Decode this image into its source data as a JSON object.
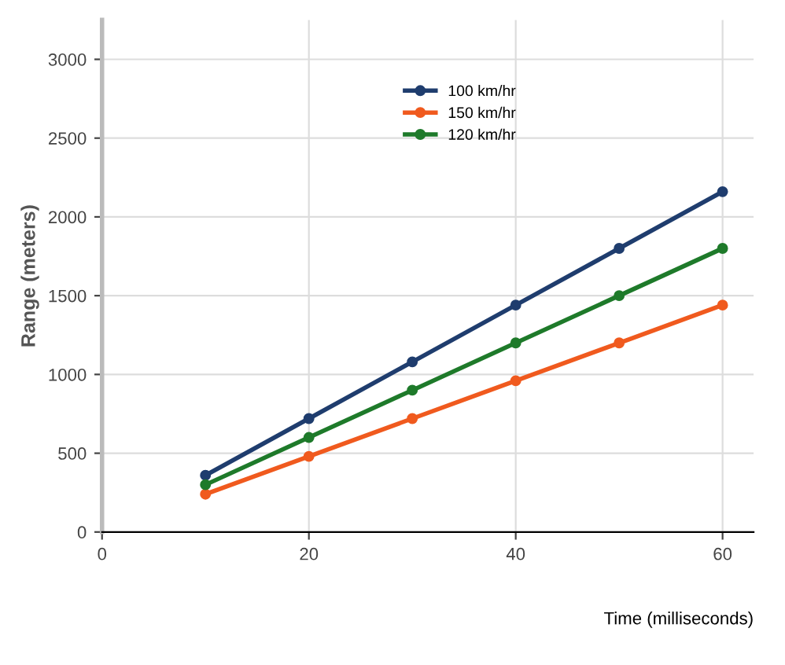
{
  "chart_data": {
    "type": "line",
    "xlabel": "Time (milliseconds)",
    "ylabel": "Range (meters)",
    "x": [
      10,
      20,
      30,
      40,
      50,
      60
    ],
    "series": [
      {
        "name": "100 km/hr",
        "color": "#1f3d6e",
        "values": [
          360,
          720,
          1080,
          1440,
          1800,
          2160
        ]
      },
      {
        "name": "150 km/hr",
        "color": "#f05a1e",
        "values": [
          240,
          480,
          720,
          960,
          1200,
          1440
        ]
      },
      {
        "name": "120 km/hr",
        "color": "#1e7a2a",
        "values": [
          300,
          600,
          900,
          1200,
          1500,
          1800
        ]
      }
    ],
    "xlim": [
      0,
      63
    ],
    "ylim": [
      0,
      3250
    ],
    "xticks": [
      0,
      20,
      40,
      60
    ],
    "yticks": [
      0,
      500,
      1000,
      1500,
      2000,
      2500,
      3000
    ],
    "grid": true,
    "legend": "top",
    "marker": "circle",
    "line_style": "solid"
  }
}
